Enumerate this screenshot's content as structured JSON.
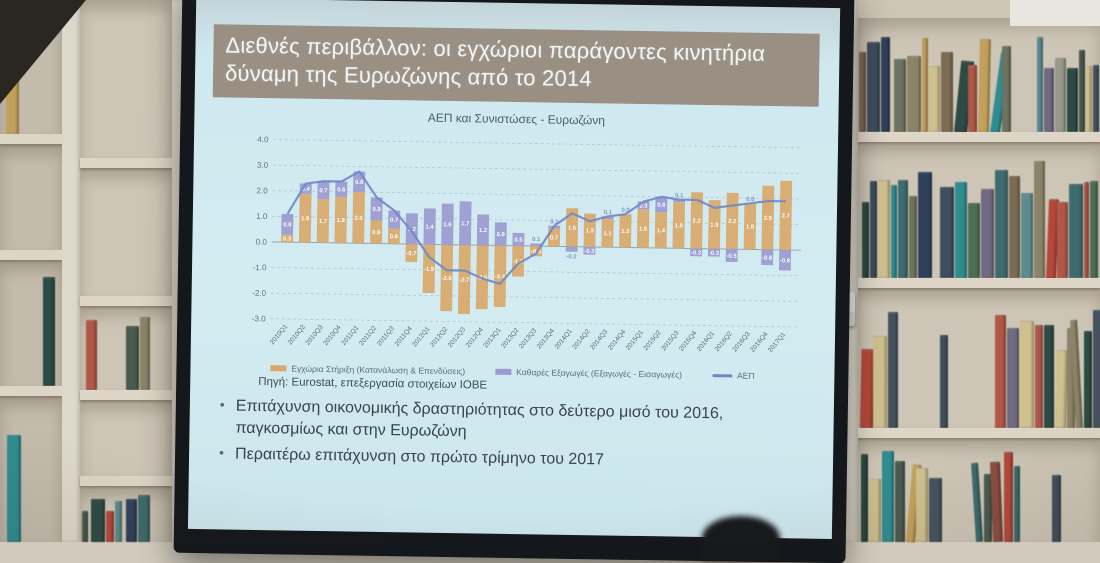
{
  "slide": {
    "title": "Διεθνές περιβάλλον: οι εγχώριοι παράγοντες κινητήρια δύναμη της Ευρωζώνης από το 2014",
    "source": "Πηγή: Eurostat, επεξεργασία στοιχείων ΙΟΒΕ",
    "bullets": [
      "Επιτάχυνση οικονομικής δραστηριότητας στο δεύτερο μισό του 2016, παγκοσμίως και στην Ευρωζώνη",
      "Περαιτέρω επιτάχυνση στο πρώτο τρίμηνο του 2017"
    ],
    "colors": {
      "title_bar": "#998f83",
      "background": "#cfe8ef"
    }
  },
  "chart_data": {
    "type": "bar",
    "stacked": true,
    "title": "ΑΕΠ και Συνιστώσες - Ευρωζώνη",
    "categories": [
      "2010Q1",
      "2010Q2",
      "2010Q3",
      "2010Q4",
      "2011Q1",
      "2011Q2",
      "2011Q3",
      "2011Q4",
      "2012Q1",
      "2012Q2",
      "2012Q3",
      "2012Q4",
      "2013Q1",
      "2013Q2",
      "2013Q3",
      "2013Q4",
      "2014Q1",
      "2014Q2",
      "2014Q3",
      "2014Q4",
      "2015Q1",
      "2015Q2",
      "2015Q3",
      "2015Q4",
      "2016Q1",
      "2016Q2",
      "2016Q3",
      "2016Q4",
      "2017Q1"
    ],
    "series": [
      {
        "name": "Εγχώρια Στήριξη (Κατανάλωση & Επενδύσεις)",
        "type": "bar",
        "color": "#d9a96c",
        "values": [
          0.3,
          1.9,
          1.7,
          1.8,
          2.0,
          0.9,
          0.6,
          -0.7,
          -1.9,
          -2.6,
          -2.7,
          -2.5,
          -2.4,
          -1.2,
          -0.4,
          0.7,
          1.5,
          1.3,
          1.1,
          1.3,
          1.5,
          1.4,
          1.8,
          2.2,
          1.9,
          2.2,
          1.8,
          2.5,
          2.7
        ]
      },
      {
        "name": "Καθαρές Εξαγωγές (Εξαγωγές - Εισαγωγές)",
        "type": "bar",
        "color": "#9b9bd1",
        "values": [
          0.8,
          0.4,
          0.7,
          0.6,
          0.8,
          0.9,
          0.7,
          1.2,
          1.4,
          1.6,
          1.7,
          1.2,
          0.9,
          0.5,
          0.1,
          0.1,
          -0.2,
          -0.3,
          0.1,
          0.0,
          0.3,
          0.6,
          0.1,
          -0.3,
          -0.3,
          -0.5,
          0.0,
          -0.6,
          -0.8
        ]
      },
      {
        "name": "ΑΕΠ",
        "type": "line",
        "color": "#6f87c7",
        "values": [
          1.1,
          2.3,
          2.4,
          2.4,
          2.8,
          1.8,
          1.3,
          0.5,
          -0.5,
          -1.0,
          -1.0,
          -1.3,
          -1.5,
          -0.7,
          -0.3,
          0.8,
          1.3,
          1.0,
          1.2,
          1.3,
          1.8,
          2.0,
          1.9,
          1.9,
          1.6,
          1.7,
          1.8,
          1.9,
          1.9
        ]
      }
    ],
    "ylim": [
      -3.0,
      4.0
    ],
    "yticks": [
      4.0,
      3.0,
      2.0,
      1.0,
      0.0,
      -1.0,
      -2.0,
      -3.0
    ],
    "grid": true,
    "legend_position": "bottom"
  },
  "room": {
    "book_palette": [
      "#4a5a50",
      "#6e7260",
      "#3f4e5c",
      "#8a4e40",
      "#c2a05c",
      "#3e6b6d",
      "#31405a",
      "#7c6c54",
      "#97978a",
      "#5d8c90",
      "#b05848",
      "#2f8c8f",
      "#cfc08e",
      "#4d6e52",
      "#2e4a44",
      "#706a80",
      "#8c8468",
      "#45525e",
      "#b4483c"
    ],
    "shelf_color": "#ddd5c5",
    "wall_color": "#d2cbbd",
    "bezel_color": "#14171b"
  }
}
